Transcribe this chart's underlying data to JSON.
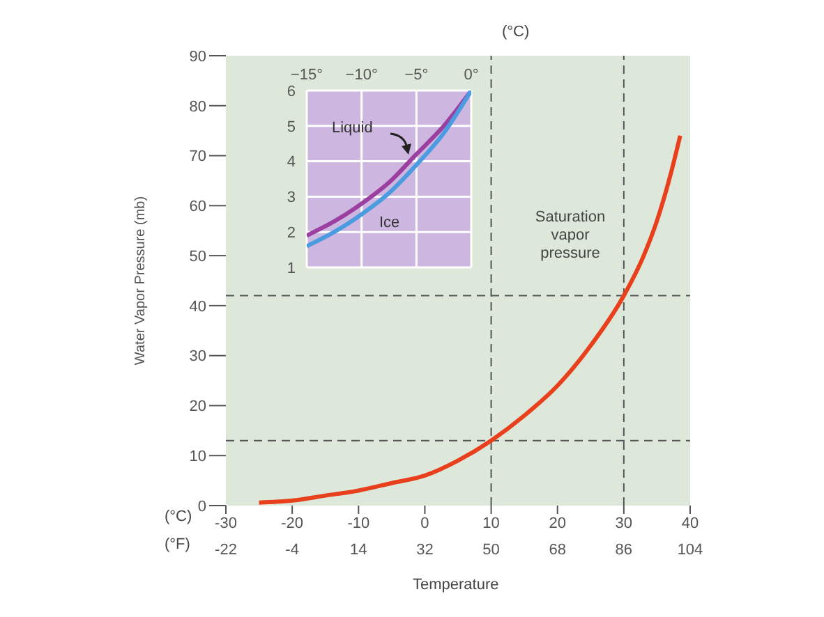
{
  "chart_data": [
    {
      "type": "line",
      "xlabel": "Temperature",
      "ylabel": "Water Vapor Pressure (mb)",
      "x": [
        -25,
        -20,
        -15,
        -10,
        -5,
        0,
        5,
        10,
        15,
        20,
        25,
        30,
        33,
        35,
        37,
        38.5
      ],
      "series": [
        {
          "name": "Saturation vapor pressure",
          "color": "#e8401c",
          "values": [
            0.6,
            1,
            2,
            3,
            4.5,
            6,
            9,
            13,
            18,
            24,
            32,
            42,
            50,
            57,
            66,
            74
          ]
        }
      ],
      "xlim": [
        -30,
        40
      ],
      "xticks": [
        -30,
        -20,
        -10,
        0,
        10,
        20,
        30,
        40
      ],
      "x2lim": [
        -22,
        104
      ],
      "x2ticks": [
        -22,
        -4,
        14,
        32,
        50,
        68,
        86,
        104
      ],
      "ylim": [
        0,
        90
      ],
      "yticks": [
        0,
        10,
        20,
        30,
        40,
        50,
        60,
        70,
        80,
        90
      ],
      "ref_lines": [
        {
          "axis": "y",
          "value": 42,
          "line_style": "dashed"
        },
        {
          "axis": "y",
          "value": 13,
          "line_style": "dashed"
        },
        {
          "axis": "x",
          "value": 10,
          "line_style": "dashed"
        },
        {
          "axis": "x",
          "value": 30,
          "line_style": "dashed"
        }
      ],
      "annotations": [
        "(°C)",
        "(°F)"
      ],
      "grid": false,
      "legend": false,
      "marker": "none",
      "line_style": "solid"
    },
    {
      "type": "line",
      "x": [
        -15,
        -12.5,
        -10,
        -7.5,
        -5,
        -2.5,
        0
      ],
      "series": [
        {
          "name": "Liquid",
          "color": "#9b3fa0",
          "values": [
            1.9,
            2.3,
            2.8,
            3.4,
            4.2,
            5.0,
            6.0
          ]
        },
        {
          "name": "Ice",
          "color": "#4a9be0",
          "values": [
            1.6,
            2.0,
            2.5,
            3.1,
            3.9,
            4.8,
            6.0
          ]
        }
      ],
      "xlim": [
        -15,
        0
      ],
      "xticks": [
        {
          "value": -15,
          "label": "−15°"
        },
        {
          "value": -10,
          "label": "−10°"
        },
        {
          "value": -5,
          "label": "−5°"
        },
        {
          "value": 0,
          "label": "0°"
        }
      ],
      "ylim": [
        1,
        6
      ],
      "yticks": [
        1,
        2,
        3,
        4,
        5,
        6
      ],
      "annotations": [
        "(°C)"
      ],
      "grid": true,
      "legend": false,
      "marker": "none",
      "line_style": "solid"
    }
  ]
}
